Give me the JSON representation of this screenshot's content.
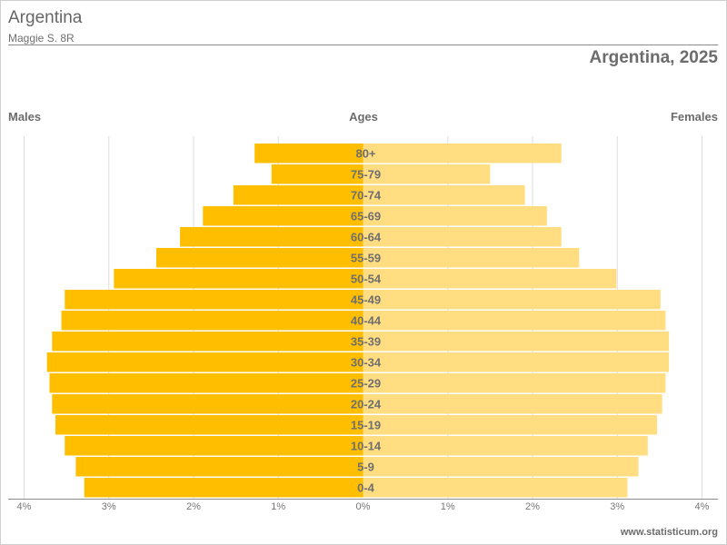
{
  "header": {
    "title": "Argentina",
    "subtitle": "Maggie S. 8R"
  },
  "labels": {
    "males": "Males",
    "ages": "Ages",
    "females": "Females"
  },
  "footer": {
    "source": "www.statisticum.org"
  },
  "colors": {
    "males": "#FFBF00",
    "females": "#FFDD80",
    "grid": "#dddddd",
    "axis": "#8c8c8c",
    "text": "#6c6c6c"
  },
  "chart_data": {
    "type": "bar",
    "orientation": "horizontal-pyramid",
    "title": "Argentina, 2025",
    "categories": [
      "80+",
      "75-79",
      "70-74",
      "65-69",
      "60-64",
      "55-59",
      "50-54",
      "45-49",
      "40-44",
      "35-39",
      "30-34",
      "25-29",
      "20-24",
      "15-19",
      "10-14",
      "5-9",
      "0-4"
    ],
    "series": [
      {
        "name": "Males",
        "values": [
          1.28,
          1.08,
          1.53,
          1.89,
          2.16,
          2.44,
          2.94,
          3.52,
          3.56,
          3.67,
          3.73,
          3.7,
          3.67,
          3.63,
          3.52,
          3.39,
          3.29
        ]
      },
      {
        "name": "Females",
        "values": [
          2.34,
          1.5,
          1.91,
          2.17,
          2.34,
          2.55,
          2.99,
          3.51,
          3.57,
          3.61,
          3.61,
          3.57,
          3.53,
          3.47,
          3.36,
          3.25,
          3.12
        ]
      }
    ],
    "xlim": [
      -4,
      4
    ],
    "xticks": [
      "4%",
      "3%",
      "2%",
      "1%",
      "0%",
      "1%",
      "2%",
      "3%",
      "4%"
    ],
    "grid": true
  }
}
